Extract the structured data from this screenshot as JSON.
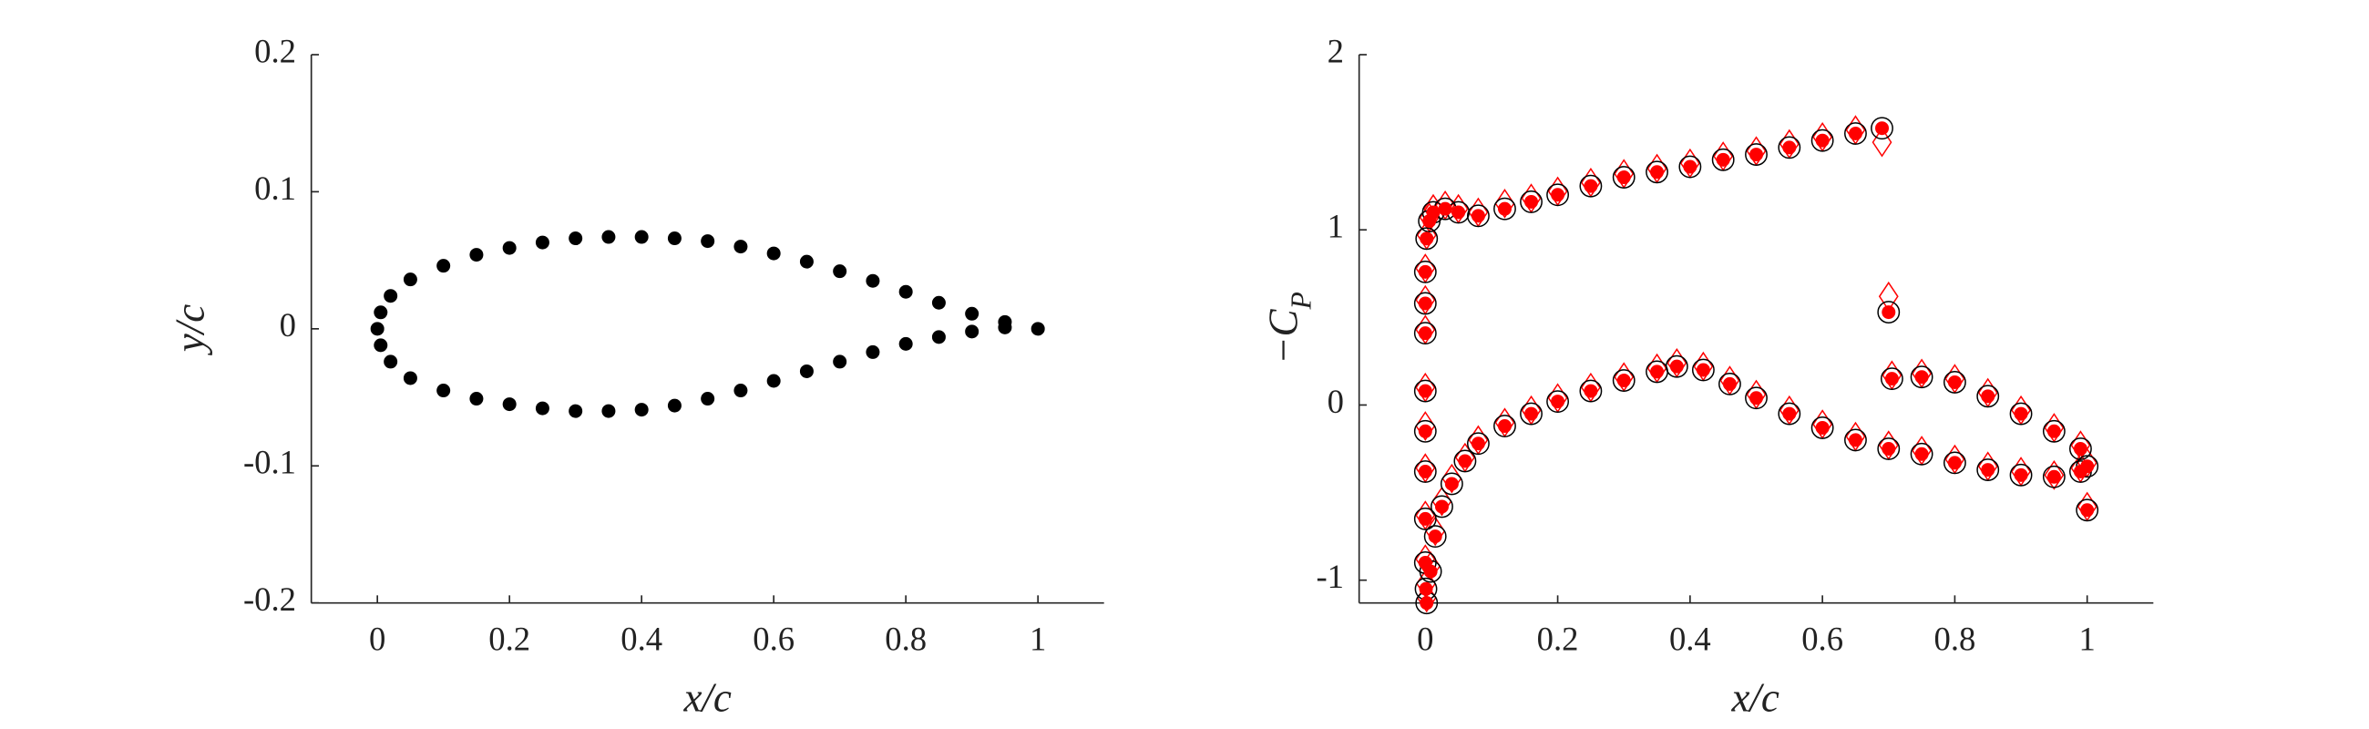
{
  "chart_data": [
    {
      "type": "scatter",
      "xlabel": "x/c",
      "ylabel": "y/c",
      "x": [
        0,
        0.005,
        0.02,
        0.05,
        0.1,
        0.15,
        0.2,
        0.25,
        0.3,
        0.35,
        0.4,
        0.45,
        0.5,
        0.55,
        0.6,
        0.65,
        0.7,
        0.75,
        0.8,
        0.85,
        0.9,
        0.95,
        1.0,
        0.005,
        0.02,
        0.05,
        0.1,
        0.15,
        0.2,
        0.25,
        0.3,
        0.35,
        0.4,
        0.45,
        0.5,
        0.55,
        0.6,
        0.65,
        0.7,
        0.75,
        0.8,
        0.85,
        0.9,
        0.95
      ],
      "series": [
        {
          "color": "#000000",
          "marker": "dot",
          "values": [
            0,
            0.012,
            0.024,
            0.036,
            0.046,
            0.054,
            0.059,
            0.063,
            0.066,
            0.067,
            0.067,
            0.066,
            0.064,
            0.06,
            0.055,
            0.049,
            0.042,
            0.035,
            0.027,
            0.019,
            0.011,
            0.005,
            0,
            -0.012,
            -0.024,
            -0.036,
            -0.045,
            -0.051,
            -0.055,
            -0.058,
            -0.06,
            -0.06,
            -0.059,
            -0.056,
            -0.051,
            -0.045,
            -0.038,
            -0.031,
            -0.024,
            -0.017,
            -0.011,
            -0.006,
            -0.002,
            0.001
          ]
        }
      ],
      "xlim": [
        -0.1,
        1.1
      ],
      "ylim": [
        -0.2,
        0.2
      ],
      "xticks": [
        0,
        0.2,
        0.4,
        0.6,
        0.8,
        1
      ],
      "yticks": [
        -0.2,
        -0.1,
        0,
        0.1,
        0.2
      ]
    },
    {
      "type": "scatter",
      "xlabel": "x/c",
      "ylabel": {
        "text": "−C",
        "subscript": "P"
      },
      "series": [
        {
          "color": "#ff0000",
          "marker": "diamond-open",
          "x": [
            0.002,
            0.001,
            0,
            0,
            0,
            0,
            0,
            0,
            0,
            0,
            0.002,
            0.006,
            0.012,
            0.03,
            0.05,
            0.08,
            0.12,
            0.16,
            0.2,
            0.25,
            0.3,
            0.35,
            0.4,
            0.45,
            0.5,
            0.55,
            0.6,
            0.65,
            0.69,
            0.008,
            0.015,
            0.025,
            0.04,
            0.06,
            0.08,
            0.12,
            0.16,
            0.2,
            0.25,
            0.3,
            0.35,
            0.38,
            0.42,
            0.46,
            0.5,
            0.55,
            0.6,
            0.65,
            0.7,
            0.75,
            0.8,
            0.85,
            0.9,
            0.95,
            0.99,
            0.7,
            0.705,
            0.75,
            0.8,
            0.85,
            0.9,
            0.95,
            0.99,
            1,
            1
          ],
          "values": [
            -1.1,
            -1.02,
            -0.88,
            -0.63,
            -0.36,
            -0.12,
            0.1,
            0.43,
            0.6,
            0.78,
            0.97,
            1.07,
            1.12,
            1.14,
            1.12,
            1.1,
            1.15,
            1.18,
            1.22,
            1.27,
            1.32,
            1.35,
            1.38,
            1.42,
            1.45,
            1.49,
            1.53,
            1.57,
            1.5,
            -0.92,
            -0.72,
            -0.55,
            -0.42,
            -0.3,
            -0.2,
            -0.1,
            -0.03,
            0.04,
            0.1,
            0.16,
            0.21,
            0.24,
            0.22,
            0.14,
            0.06,
            -0.03,
            -0.11,
            -0.18,
            -0.23,
            -0.26,
            -0.31,
            -0.35,
            -0.38,
            -0.4,
            -0.36,
            0.62,
            0.17,
            0.18,
            0.15,
            0.07,
            -0.03,
            -0.13,
            -0.23,
            -0.33,
            -0.58
          ]
        },
        {
          "color": "#000000",
          "marker": "circle-open",
          "x": [
            0.002,
            0.001,
            0,
            0,
            0,
            0,
            0,
            0,
            0,
            0,
            0.002,
            0.006,
            0.012,
            0.03,
            0.05,
            0.08,
            0.12,
            0.16,
            0.2,
            0.25,
            0.3,
            0.35,
            0.4,
            0.45,
            0.5,
            0.55,
            0.6,
            0.65,
            0.69,
            0.008,
            0.015,
            0.025,
            0.04,
            0.06,
            0.08,
            0.12,
            0.16,
            0.2,
            0.25,
            0.3,
            0.35,
            0.38,
            0.42,
            0.46,
            0.5,
            0.55,
            0.6,
            0.65,
            0.7,
            0.75,
            0.8,
            0.85,
            0.9,
            0.95,
            0.99,
            0.7,
            0.705,
            0.75,
            0.8,
            0.85,
            0.9,
            0.95,
            0.99,
            1,
            1
          ],
          "values": [
            -1.13,
            -1.05,
            -0.9,
            -0.65,
            -0.38,
            -0.15,
            0.08,
            0.41,
            0.58,
            0.76,
            0.95,
            1.05,
            1.1,
            1.12,
            1.1,
            1.08,
            1.12,
            1.16,
            1.2,
            1.25,
            1.3,
            1.33,
            1.36,
            1.4,
            1.43,
            1.47,
            1.51,
            1.55,
            1.58,
            -0.95,
            -0.75,
            -0.58,
            -0.45,
            -0.32,
            -0.22,
            -0.12,
            -0.05,
            0.02,
            0.08,
            0.14,
            0.19,
            0.22,
            0.2,
            0.12,
            0.04,
            -0.05,
            -0.13,
            -0.2,
            -0.25,
            -0.28,
            -0.33,
            -0.37,
            -0.4,
            -0.41,
            -0.38,
            0.53,
            0.15,
            0.16,
            0.13,
            0.05,
            -0.05,
            -0.15,
            -0.25,
            -0.35,
            -0.6
          ]
        },
        {
          "color": "#ff0000",
          "marker": "dot",
          "x": [
            0.002,
            0.001,
            0,
            0,
            0,
            0,
            0,
            0,
            0,
            0,
            0.002,
            0.006,
            0.012,
            0.03,
            0.05,
            0.08,
            0.12,
            0.16,
            0.2,
            0.25,
            0.3,
            0.35,
            0.4,
            0.45,
            0.5,
            0.55,
            0.6,
            0.65,
            0.69,
            0.008,
            0.015,
            0.025,
            0.04,
            0.06,
            0.08,
            0.12,
            0.16,
            0.2,
            0.25,
            0.3,
            0.35,
            0.38,
            0.42,
            0.46,
            0.5,
            0.55,
            0.6,
            0.65,
            0.7,
            0.75,
            0.8,
            0.85,
            0.9,
            0.95,
            0.99,
            0.7,
            0.705,
            0.75,
            0.8,
            0.85,
            0.9,
            0.95,
            0.99,
            1,
            1
          ],
          "values": [
            -1.13,
            -1.05,
            -0.9,
            -0.65,
            -0.38,
            -0.15,
            0.08,
            0.41,
            0.58,
            0.76,
            0.95,
            1.05,
            1.1,
            1.12,
            1.1,
            1.08,
            1.12,
            1.16,
            1.2,
            1.25,
            1.3,
            1.33,
            1.36,
            1.4,
            1.43,
            1.47,
            1.51,
            1.55,
            1.58,
            -0.95,
            -0.75,
            -0.58,
            -0.45,
            -0.32,
            -0.22,
            -0.12,
            -0.05,
            0.02,
            0.08,
            0.14,
            0.19,
            0.22,
            0.2,
            0.12,
            0.04,
            -0.05,
            -0.13,
            -0.2,
            -0.25,
            -0.28,
            -0.33,
            -0.37,
            -0.4,
            -0.41,
            -0.38,
            0.53,
            0.15,
            0.16,
            0.13,
            0.05,
            -0.05,
            -0.15,
            -0.25,
            -0.35,
            -0.6
          ]
        }
      ],
      "xlim": [
        -0.1,
        1.1
      ],
      "ylim": [
        -1.13,
        2
      ],
      "xticks": [
        0,
        0.2,
        0.4,
        0.6,
        0.8,
        1
      ],
      "yticks": [
        -1,
        0,
        1,
        2
      ]
    }
  ]
}
